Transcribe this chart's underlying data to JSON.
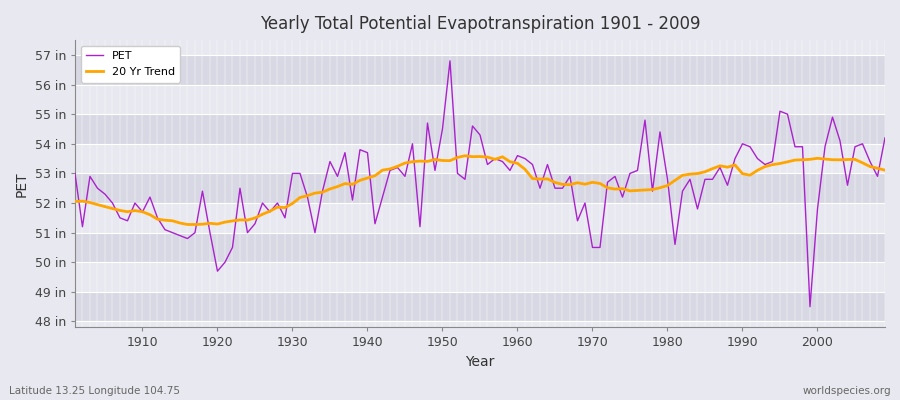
{
  "title": "Yearly Total Potential Evapotranspiration 1901 - 2009",
  "xlabel": "Year",
  "ylabel": "PET",
  "pet_color": "#aa22cc",
  "trend_color": "#FFA500",
  "bg_color": "#e8e8f0",
  "band_light": "#e8e8f0",
  "band_dark": "#d8d8e4",
  "grid_color": "#ffffff",
  "ylim": [
    47.8,
    57.5
  ],
  "yticks": [
    48,
    49,
    50,
    51,
    52,
    53,
    54,
    55,
    56,
    57
  ],
  "ytick_labels": [
    "48 in",
    "49 in",
    "50 in",
    "51 in",
    "52 in",
    "53 in",
    "54 in",
    "55 in",
    "56 in",
    "57 in"
  ],
  "xticks": [
    1910,
    1920,
    1930,
    1940,
    1950,
    1960,
    1970,
    1980,
    1990,
    2000
  ],
  "bottom_left": "Latitude 13.25 Longitude 104.75",
  "bottom_right": "worldspecies.org",
  "pet_data": [
    53.0,
    51.2,
    52.9,
    52.5,
    52.3,
    52.0,
    51.5,
    51.4,
    52.0,
    51.7,
    52.2,
    51.5,
    51.1,
    51.0,
    50.9,
    50.8,
    51.0,
    52.4,
    51.0,
    49.7,
    50.0,
    50.5,
    52.5,
    51.0,
    51.3,
    52.0,
    51.7,
    52.0,
    51.5,
    53.0,
    53.0,
    52.2,
    51.0,
    52.4,
    53.4,
    52.9,
    53.7,
    52.1,
    53.8,
    53.7,
    51.3,
    52.2,
    53.1,
    53.2,
    52.9,
    54.0,
    51.2,
    54.7,
    53.1,
    54.5,
    56.8,
    53.0,
    52.8,
    54.6,
    54.3,
    53.3,
    53.5,
    53.4,
    53.1,
    53.6,
    53.5,
    53.3,
    52.5,
    53.3,
    52.5,
    52.5,
    52.9,
    51.4,
    52.0,
    50.5,
    50.5,
    52.7,
    52.9,
    52.2,
    53.0,
    53.1,
    54.8,
    52.4,
    54.4,
    52.8,
    50.6,
    52.4,
    52.8,
    51.8,
    52.8,
    52.8,
    53.2,
    52.6,
    53.5,
    54.0,
    53.9,
    53.5,
    53.3,
    53.4,
    55.1,
    55.0,
    53.9,
    53.9,
    48.5,
    51.8,
    53.9,
    54.9,
    54.1,
    52.6,
    53.9,
    54.0,
    53.4,
    52.9,
    54.2
  ]
}
